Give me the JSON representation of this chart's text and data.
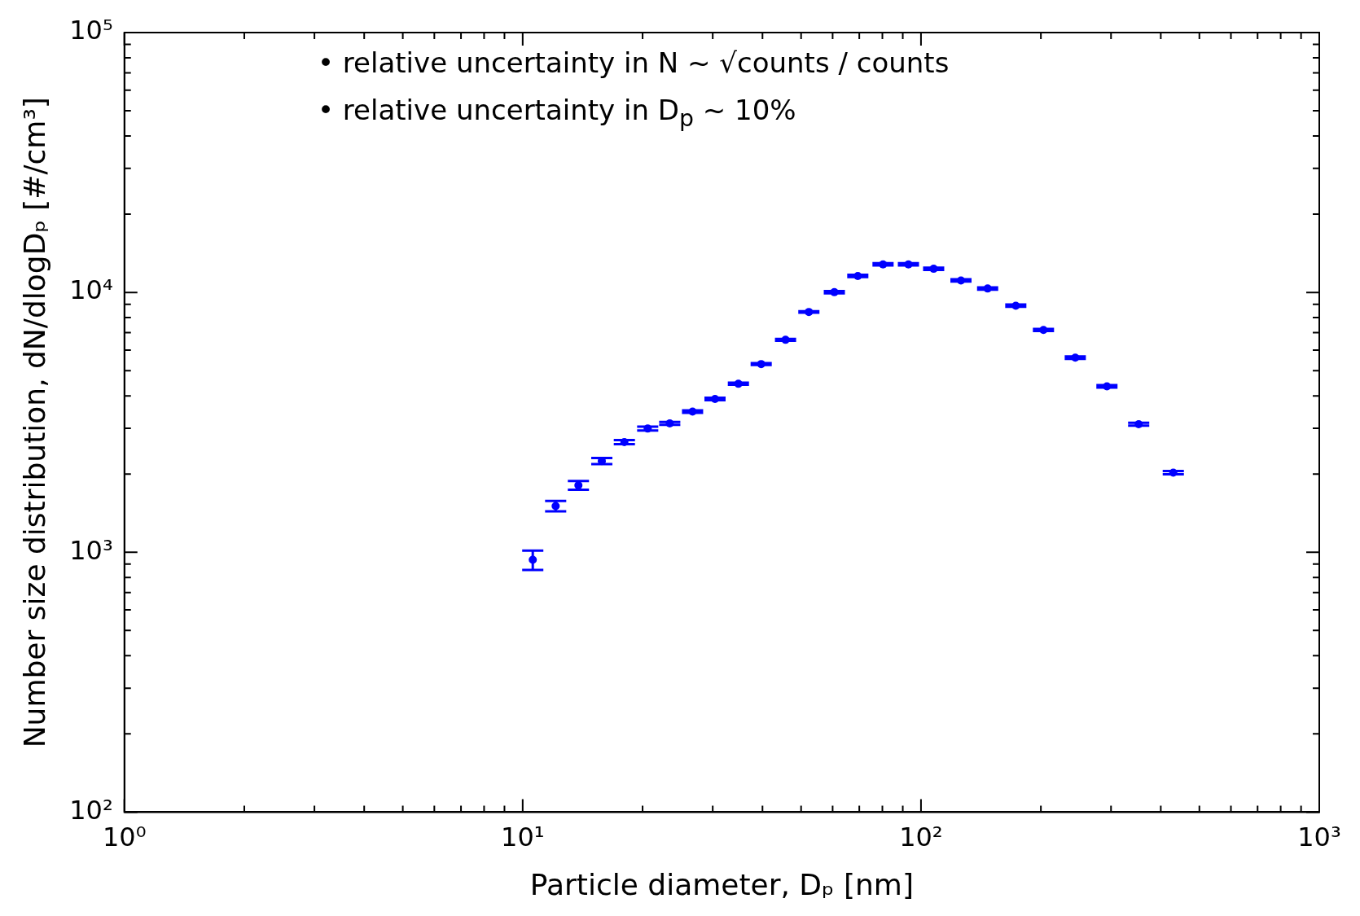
{
  "chart_data": {
    "type": "scatter",
    "xlabel": "Particle diameter, Dₚ [nm]",
    "ylabel": "Number size distribution, dN/dlogDₚ [#/cm³]",
    "annotations": [
      "•  relative uncertainty in N ~ √counts / counts",
      "•  relative uncertainty in D$_{p}$ ~ 10%"
    ],
    "log": "xy",
    "grid": false,
    "legend": false,
    "marker": "circle",
    "x": [
      10.6,
      12.1,
      13.8,
      15.8,
      18.0,
      20.6,
      23.4,
      26.7,
      30.4,
      34.8,
      39.7,
      45.7,
      52.3,
      60.6,
      69.4,
      80.3,
      93,
      107.6,
      126,
      147,
      173,
      203,
      244,
      293,
      352,
      430
    ],
    "series": [
      {
        "color": "#0000ff",
        "values": [
          935,
          1507,
          1811,
          2244,
          2654,
          2992,
          3134,
          3478,
          3890,
          4450,
          5300,
          6570,
          8410,
          10020,
          11570,
          12820,
          12820,
          12330,
          11120,
          10350,
          8890,
          7170,
          5610,
          4350,
          3110,
          2025
        ],
        "errors": [
          80,
          70,
          70,
          60,
          50,
          50,
          40,
          40,
          40,
          40,
          40,
          50,
          50,
          100,
          120,
          130,
          130,
          120,
          110,
          100,
          90,
          70,
          60,
          50,
          40,
          30
        ]
      }
    ],
    "xlim": [
      1,
      1000
    ],
    "ylim": [
      100,
      100000
    ],
    "xticks": [
      {
        "value": 1,
        "label": "10⁰"
      },
      {
        "value": 2,
        "label": null
      },
      {
        "value": 3,
        "label": null
      },
      {
        "value": 4,
        "label": null
      },
      {
        "value": 5,
        "label": null
      },
      {
        "value": 6,
        "label": null
      },
      {
        "value": 7,
        "label": null
      },
      {
        "value": 8,
        "label": null
      },
      {
        "value": 9,
        "label": null
      },
      {
        "value": 10,
        "label": "10¹"
      },
      {
        "value": 20,
        "label": null
      },
      {
        "value": 30,
        "label": null
      },
      {
        "value": 40,
        "label": null
      },
      {
        "value": 50,
        "label": null
      },
      {
        "value": 60,
        "label": null
      },
      {
        "value": 70,
        "label": null
      },
      {
        "value": 80,
        "label": null
      },
      {
        "value": 90,
        "label": null
      },
      {
        "value": 100,
        "label": "10²"
      },
      {
        "value": 200,
        "label": null
      },
      {
        "value": 300,
        "label": null
      },
      {
        "value": 400,
        "label": null
      },
      {
        "value": 500,
        "label": null
      },
      {
        "value": 600,
        "label": null
      },
      {
        "value": 700,
        "label": null
      },
      {
        "value": 800,
        "label": null
      },
      {
        "value": 900,
        "label": null
      },
      {
        "value": 1000,
        "label": "10³"
      }
    ],
    "yticks": [
      {
        "value": 100,
        "label": "10²"
      },
      {
        "value": 200,
        "label": null
      },
      {
        "value": 300,
        "label": null
      },
      {
        "value": 400,
        "label": null
      },
      {
        "value": 500,
        "label": null
      },
      {
        "value": 600,
        "label": null
      },
      {
        "value": 700,
        "label": null
      },
      {
        "value": 800,
        "label": null
      },
      {
        "value": 900,
        "label": null
      },
      {
        "value": 1000,
        "label": "10³"
      },
      {
        "value": 2000,
        "label": null
      },
      {
        "value": 3000,
        "label": null
      },
      {
        "value": 4000,
        "label": null
      },
      {
        "value": 5000,
        "label": null
      },
      {
        "value": 6000,
        "label": null
      },
      {
        "value": 7000,
        "label": null
      },
      {
        "value": 8000,
        "label": null
      },
      {
        "value": 9000,
        "label": null
      },
      {
        "value": 10000,
        "label": "10⁴"
      },
      {
        "value": 20000,
        "label": null
      },
      {
        "value": 30000,
        "label": null
      },
      {
        "value": 40000,
        "label": null
      },
      {
        "value": 50000,
        "label": null
      },
      {
        "value": 60000,
        "label": null
      },
      {
        "value": 70000,
        "label": null
      },
      {
        "value": 80000,
        "label": null
      },
      {
        "value": 90000,
        "label": null
      },
      {
        "value": 100000,
        "label": "10⁵"
      }
    ]
  }
}
